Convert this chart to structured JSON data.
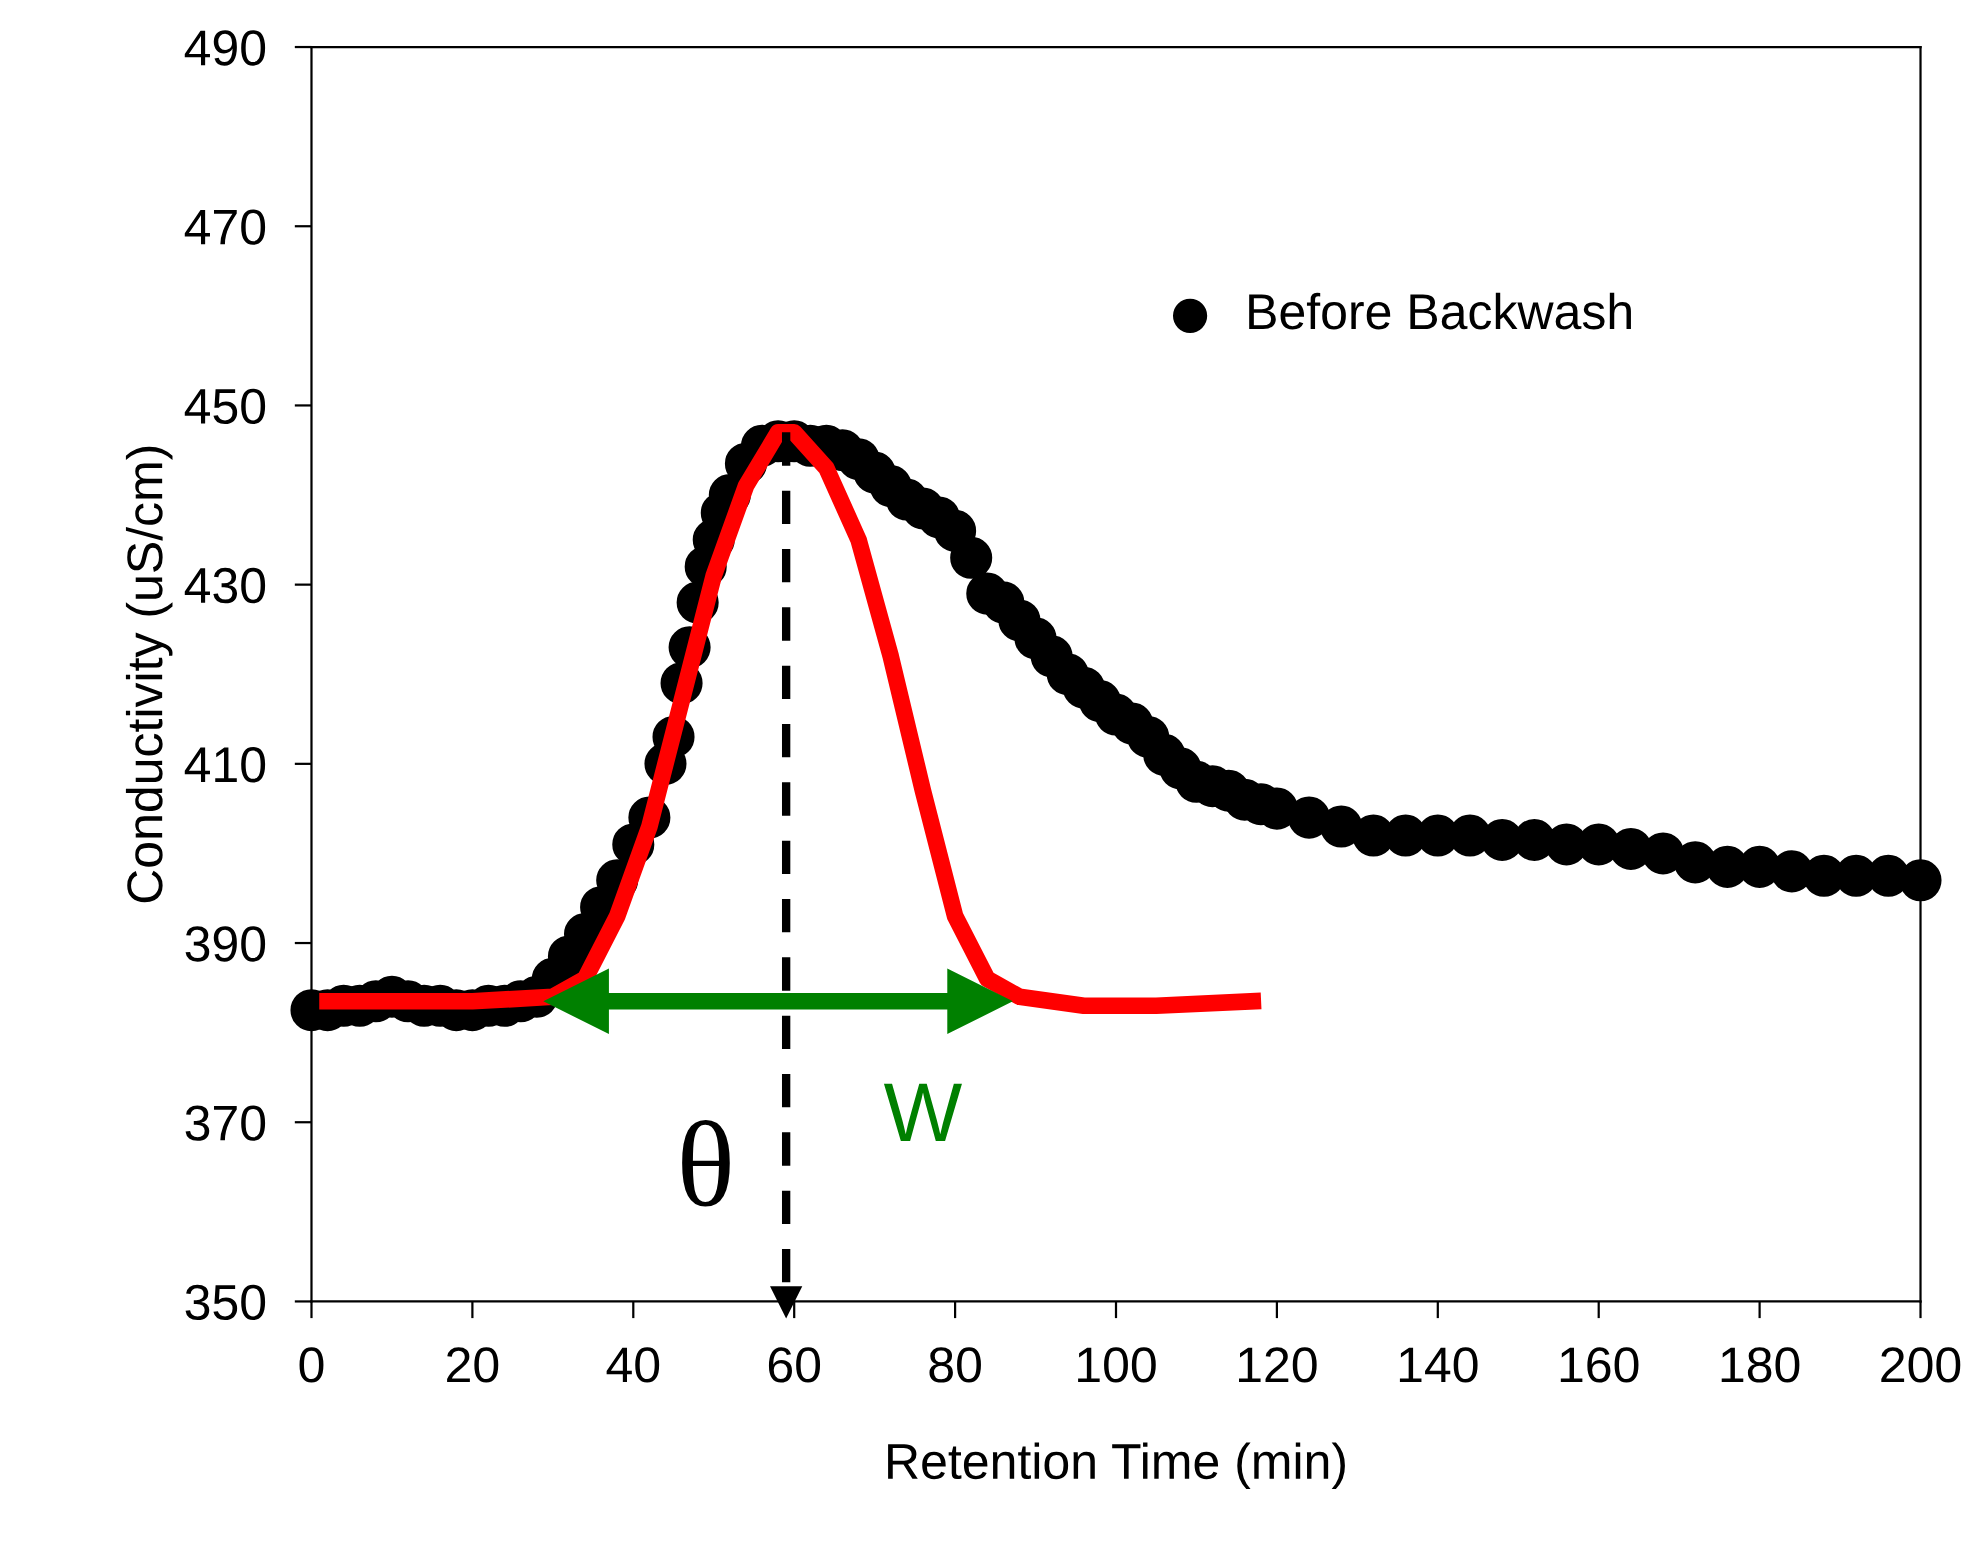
{
  "chart_data": {
    "type": "scatter",
    "xlabel": "Retention Time (min)",
    "ylabel": "Conductivity (uS/cm)",
    "xlim": [
      0,
      200
    ],
    "xticks": [
      0,
      20,
      40,
      60,
      80,
      100,
      120,
      140,
      160,
      180,
      200
    ],
    "ylim": [
      350,
      490
    ],
    "yticks": [
      350,
      370,
      390,
      410,
      430,
      450,
      470,
      490
    ],
    "grid": false,
    "legend": "top right",
    "series": [
      {
        "name": "Before Backwash",
        "marker": "circle",
        "color": "#000000",
        "x": [
          0,
          2,
          4,
          6,
          8,
          10,
          12,
          14,
          16,
          18,
          20,
          22,
          24,
          26,
          28,
          30,
          32,
          34,
          36,
          38,
          40,
          42,
          44,
          45,
          46,
          47,
          48,
          49,
          50,
          51,
          52,
          54,
          56,
          58,
          60,
          62,
          64,
          66,
          68,
          70,
          72,
          74,
          76,
          78,
          80,
          82,
          84,
          86,
          88,
          90,
          92,
          94,
          96,
          98,
          100,
          102,
          104,
          106,
          108,
          110,
          112,
          114,
          116,
          118,
          120,
          124,
          128,
          132,
          136,
          140,
          144,
          148,
          152,
          156,
          160,
          164,
          168,
          172,
          176,
          180,
          184,
          188,
          192,
          196,
          200
        ],
        "values": [
          382.5,
          382.5,
          383,
          383,
          383.5,
          384,
          383.5,
          383,
          383,
          382.5,
          382.5,
          383,
          383,
          383.5,
          384,
          386,
          388.5,
          391,
          394,
          397,
          401,
          404,
          410,
          413,
          419,
          423,
          428,
          432,
          435,
          438,
          440,
          443.5,
          445.5,
          446,
          446,
          445.5,
          445.5,
          445,
          444,
          442.5,
          441,
          439.5,
          438.5,
          437.5,
          436,
          433,
          429,
          428,
          426,
          424,
          422,
          420,
          418.5,
          417,
          415.5,
          414.5,
          413,
          411,
          409.5,
          408,
          407.5,
          407,
          406,
          405.5,
          405,
          404,
          403,
          402,
          402,
          402,
          402,
          401.5,
          401.5,
          401,
          401,
          400.5,
          400,
          399,
          398.5,
          398.5,
          398,
          397.5,
          397.5,
          397.5,
          397
        ]
      },
      {
        "type": "line",
        "marker": "none",
        "color": "#ff0000",
        "x": [
          2,
          10,
          20,
          30,
          34,
          38,
          42,
          46,
          50,
          54,
          58,
          60,
          64,
          68,
          72,
          76,
          80,
          84,
          88,
          96,
          105,
          117
        ],
        "values": [
          383.5,
          383.5,
          383.5,
          384,
          386,
          393,
          403,
          417,
          431,
          441,
          447,
          447,
          443,
          435,
          422,
          407,
          393,
          386,
          384,
          383,
          383,
          383.5
        ]
      },
      {
        "type": "line",
        "marker": "triangle",
        "color": "#000000",
        "line_style": "dashed",
        "x": [
          59,
          59
        ],
        "values": [
          447,
          350
        ]
      },
      {
        "type": "line",
        "marker": "triangle",
        "color": "#008000",
        "x": [
          33,
          83
        ],
        "values": [
          383.5,
          383.5
        ]
      }
    ],
    "annotations": [
      "θ",
      "W"
    ]
  }
}
